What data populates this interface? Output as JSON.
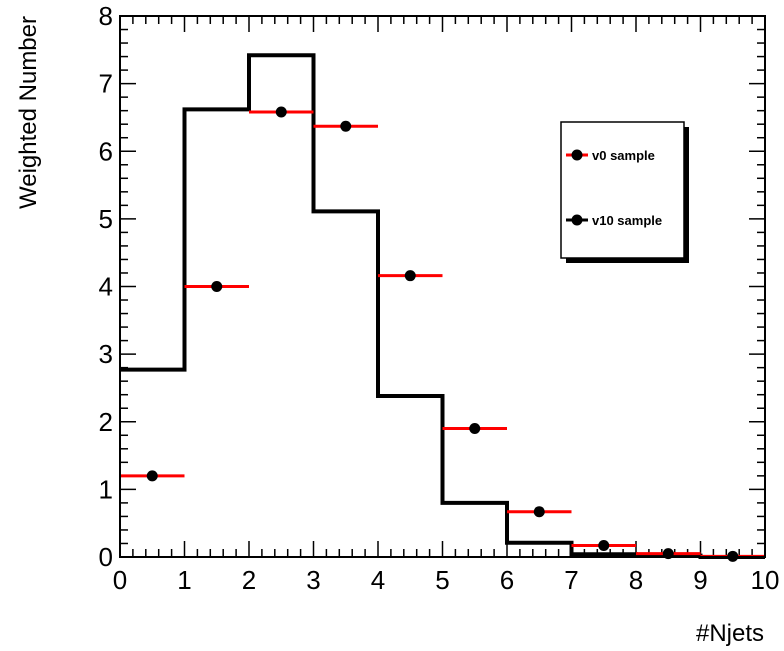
{
  "chart_data": {
    "type": "line",
    "xlabel": "#Njets",
    "ylabel": "Weighted Number",
    "xlim": [
      0,
      10
    ],
    "ylim": [
      0,
      8
    ],
    "x_ticks": [
      "0",
      "1",
      "2",
      "3",
      "4",
      "5",
      "6",
      "7",
      "8",
      "9",
      "10"
    ],
    "y_ticks": [
      "0",
      "1",
      "2",
      "3",
      "4",
      "5",
      "6",
      "7",
      "8"
    ],
    "bin_edges": [
      0,
      1,
      2,
      3,
      4,
      5,
      6,
      7,
      8,
      9,
      10
    ],
    "series": [
      {
        "name": "v0 sample",
        "style": "points-with-xerror",
        "marker_color": "#000000",
        "error_color": "#ff0000",
        "values": [
          1.2,
          4.0,
          6.58,
          6.37,
          4.16,
          1.9,
          0.67,
          0.17,
          0.05,
          0.01
        ]
      },
      {
        "name": "v10 sample",
        "style": "step-histogram",
        "line_color": "#000000",
        "values": [
          2.77,
          6.62,
          7.42,
          5.11,
          2.38,
          0.8,
          0.21,
          0.04,
          0.02,
          0.0
        ]
      }
    ],
    "legend": {
      "position": "top-right",
      "entries": [
        "v0 sample",
        "v10 sample"
      ]
    },
    "grid": false
  }
}
